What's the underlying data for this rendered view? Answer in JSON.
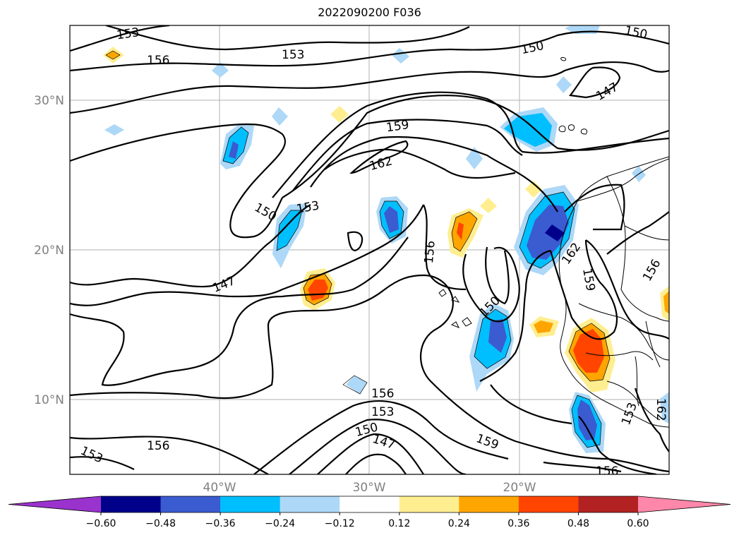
{
  "title": "2022090200 F036",
  "map": {
    "lon_range": [
      -50,
      -10
    ],
    "lat_range": [
      5,
      35
    ],
    "lat_ticks": [
      {
        "value": 10,
        "label": "10°N"
      },
      {
        "value": 20,
        "label": "20°N"
      },
      {
        "value": 30,
        "label": "30°N"
      }
    ],
    "lon_ticks": [
      {
        "value": -40,
        "label": "40°W"
      },
      {
        "value": -30,
        "label": "30°W"
      },
      {
        "value": -20,
        "label": "20°W"
      }
    ],
    "gridlines": true,
    "contour_labels": [
      "153",
      "156",
      "153",
      "150",
      "150",
      "147",
      "159",
      "162",
      "150",
      "153",
      "147",
      "156",
      "150",
      "162",
      "159",
      "156",
      "156",
      "153",
      "150",
      "147",
      "159",
      "156",
      "153",
      "156",
      "153",
      "162"
    ]
  },
  "colorbar": {
    "levels": [
      "−0.60",
      "−0.48",
      "−0.36",
      "−0.24",
      "−0.12",
      "0.12",
      "0.24",
      "0.36",
      "0.48",
      "0.60"
    ],
    "colors": [
      "#9a32cd",
      "#00008b",
      "#3b5bd0",
      "#00bfff",
      "#add8f7",
      "#ffffff",
      "#ffee90",
      "#ffa500",
      "#ff4500",
      "#b22222",
      "#ff88aa"
    ],
    "extend": "both"
  }
}
